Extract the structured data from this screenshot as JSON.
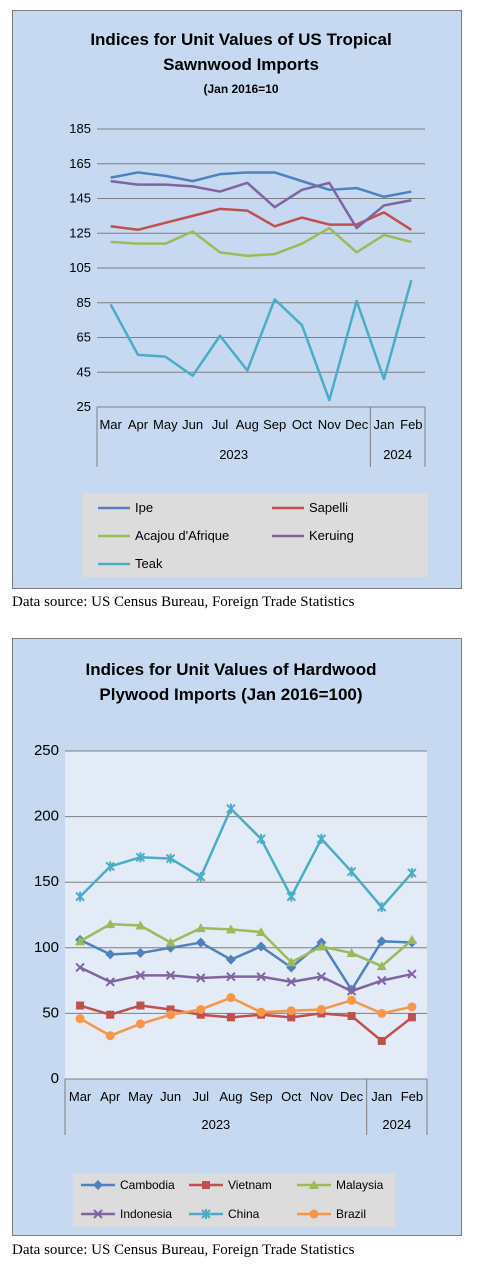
{
  "chart_data": [
    {
      "type": "line",
      "title_lines": [
        "Indices for Unit Values of US Tropical",
        "Sawnwood Imports",
        "(Jan 2016=10"
      ],
      "categories": [
        "Mar",
        "Apr",
        "May",
        "Jun",
        "Jul",
        "Aug",
        "Sep",
        "Oct",
        "Nov",
        "Dec",
        "Jan",
        "Feb"
      ],
      "year_groups": [
        {
          "label": "2023",
          "span": 10
        },
        {
          "label": "2024",
          "span": 2
        }
      ],
      "ylim": [
        25,
        185
      ],
      "yticks": [
        25,
        45,
        65,
        85,
        105,
        125,
        145,
        165,
        185
      ],
      "grid": true,
      "legend_position": "bottom",
      "series": [
        {
          "name": "Ipe",
          "color": "#4f81bd",
          "marker": "none",
          "values": [
            157,
            160,
            158,
            155,
            159,
            160,
            160,
            155,
            150,
            151,
            146,
            149
          ]
        },
        {
          "name": "Sapelli",
          "color": "#c0504d",
          "marker": "none",
          "values": [
            129,
            127,
            131,
            135,
            139,
            138,
            129,
            134,
            130,
            130,
            137,
            127
          ]
        },
        {
          "name": "Acajou d'Afrique",
          "color": "#9bbb59",
          "marker": "none",
          "values": [
            120,
            119,
            119,
            126,
            114,
            112,
            113,
            119,
            128,
            114,
            124,
            120
          ]
        },
        {
          "name": "Keruing",
          "color": "#8064a2",
          "marker": "none",
          "values": [
            155,
            153,
            153,
            152,
            149,
            154,
            140,
            150,
            154,
            128,
            141,
            144
          ]
        },
        {
          "name": "Teak",
          "color": "#4bacc6",
          "marker": "none",
          "values": [
            84,
            55,
            54,
            43,
            66,
            46,
            87,
            72,
            29,
            86,
            41,
            98
          ]
        }
      ]
    },
    {
      "type": "line",
      "title_lines": [
        "Indices for Unit Values of Hardwood",
        "Plywood Imports (Jan 2016=100)"
      ],
      "categories": [
        "Mar",
        "Apr",
        "May",
        "Jun",
        "Jul",
        "Aug",
        "Sep",
        "Oct",
        "Nov",
        "Dec",
        "Jan",
        "Feb"
      ],
      "year_groups": [
        {
          "label": "2023",
          "span": 10
        },
        {
          "label": "2024",
          "span": 2
        }
      ],
      "ylim": [
        0,
        250
      ],
      "yticks": [
        0,
        50,
        100,
        150,
        200,
        250
      ],
      "grid": true,
      "legend_position": "bottom",
      "series": [
        {
          "name": "Cambodia",
          "color": "#4f81bd",
          "marker": "diamond",
          "values": [
            106,
            95,
            96,
            100,
            104,
            91,
            101,
            85,
            104,
            68,
            105,
            104
          ]
        },
        {
          "name": "Vietnam",
          "color": "#c0504d",
          "marker": "square",
          "values": [
            56,
            49,
            56,
            53,
            49,
            47,
            49,
            47,
            50,
            48,
            29,
            47
          ]
        },
        {
          "name": "Malaysia",
          "color": "#9bbb59",
          "marker": "triangle",
          "values": [
            105,
            118,
            117,
            104,
            115,
            114,
            112,
            89,
            101,
            96,
            86,
            106
          ]
        },
        {
          "name": "Indonesia",
          "color": "#8064a2",
          "marker": "x",
          "values": [
            85,
            74,
            79,
            79,
            77,
            78,
            78,
            74,
            78,
            67,
            75,
            80
          ]
        },
        {
          "name": "China",
          "color": "#4bacc6",
          "marker": "star",
          "values": [
            139,
            162,
            169,
            168,
            154,
            206,
            183,
            139,
            183,
            158,
            131,
            157
          ]
        },
        {
          "name": "Brazil",
          "color": "#f79646",
          "marker": "circle",
          "values": [
            46,
            33,
            42,
            49,
            53,
            62,
            51,
            52,
            53,
            60,
            50,
            55
          ]
        }
      ]
    }
  ],
  "sources": [
    "Data source: US Census Bureau, Foreign Trade Statistics",
    "Data source: US Census Bureau, Foreign Trade Statistics"
  ]
}
